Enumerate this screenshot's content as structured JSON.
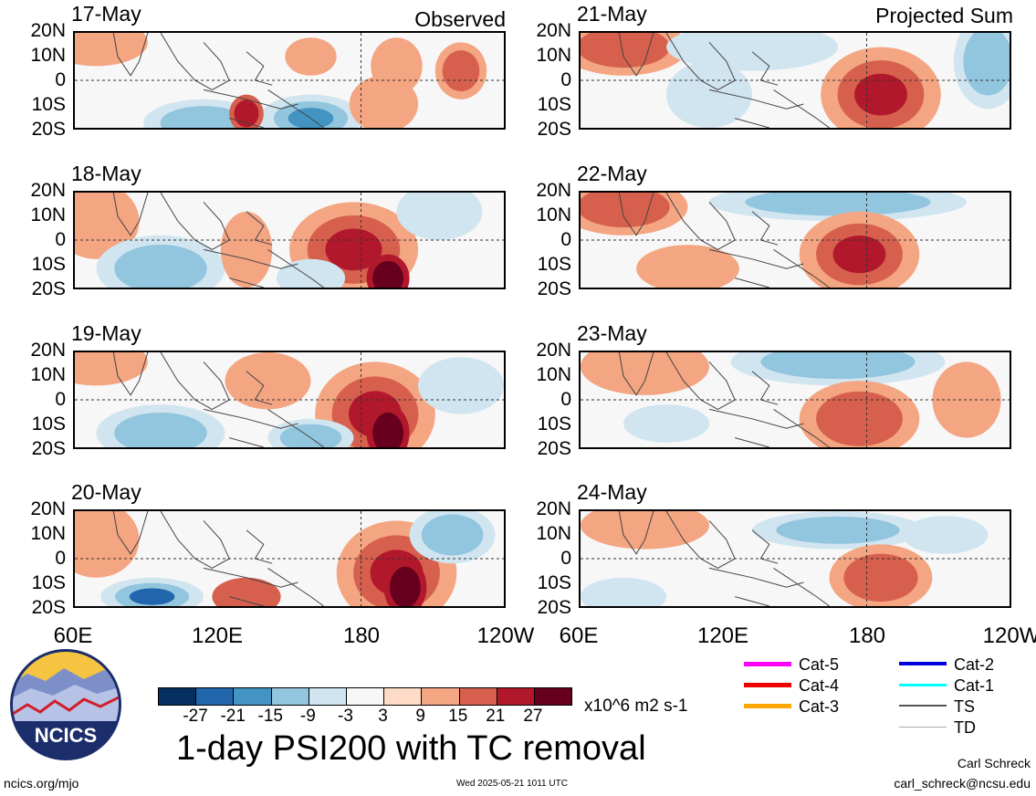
{
  "panels_left_tag": "Observed",
  "panels_right_tag": "Projected Sum",
  "panels": [
    {
      "date": "17-May",
      "column": "left",
      "row": 0
    },
    {
      "date": "18-May",
      "column": "left",
      "row": 1
    },
    {
      "date": "19-May",
      "column": "left",
      "row": 2
    },
    {
      "date": "20-May",
      "column": "left",
      "row": 3
    },
    {
      "date": "21-May",
      "column": "right",
      "row": 0
    },
    {
      "date": "22-May",
      "column": "right",
      "row": 1
    },
    {
      "date": "23-May",
      "column": "right",
      "row": 2
    },
    {
      "date": "24-May",
      "column": "right",
      "row": 3
    }
  ],
  "lat_labels": [
    "20N",
    "10N",
    "0",
    "10S",
    "20S"
  ],
  "lon_labels": [
    "60E",
    "120E",
    "180",
    "120W"
  ],
  "lon_labels_right": [
    "60E",
    "120E",
    "180",
    "120W"
  ],
  "colorbar": {
    "ticks": [
      "-27",
      "-21",
      "-15",
      "-9",
      "-3",
      "3",
      "9",
      "15",
      "21",
      "27"
    ],
    "colors": [
      "#053061",
      "#2166ac",
      "#4393c3",
      "#92c5de",
      "#d1e5f0",
      "#f7f7f7",
      "#fddbc7",
      "#f4a582",
      "#d6604d",
      "#b2182b",
      "#67001f"
    ],
    "units": "x10^6 m2 s-1"
  },
  "title": "1-day PSI200 with TC removal",
  "logo_text": "NCICS",
  "footer": {
    "left": "ncics.org/mjo",
    "center": "Wed 2025-05-21 1011 UTC",
    "author": "Carl Schreck",
    "email": "carl_schreck@ncsu.edu"
  },
  "tc_legend": [
    {
      "label": "Cat-5",
      "color": "#ff00ff",
      "width": 5
    },
    {
      "label": "Cat-4",
      "color": "#ee0000",
      "width": 5
    },
    {
      "label": "Cat-3",
      "color": "#ffa500",
      "width": 5
    },
    {
      "label": "Cat-2",
      "color": "#0000dd",
      "width": 4
    },
    {
      "label": "Cat-1",
      "color": "#00ffff",
      "width": 3
    },
    {
      "label": "TS",
      "color": "#555555",
      "width": 2
    },
    {
      "label": "TD",
      "color": "#aaaaaa",
      "width": 1
    }
  ],
  "chart_data": {
    "type": "heatmap",
    "title": "1-day PSI200 with TC removal",
    "variable": "PSI200",
    "units": "x10^6 m2 s-1",
    "x_axis": {
      "range": [
        "60E",
        "120W"
      ],
      "ticks": [
        "60E",
        "120E",
        "180",
        "120W"
      ]
    },
    "y_axis": {
      "range": [
        "20S",
        "20N"
      ],
      "ticks": [
        "20N",
        "10N",
        "0",
        "10S",
        "20S"
      ]
    },
    "color_levels": [
      -27,
      -21,
      -15,
      -9,
      -3,
      3,
      9,
      15,
      21,
      27
    ],
    "panels": [
      {
        "date": "17-May",
        "type": "Observed"
      },
      {
        "date": "18-May",
        "type": "Observed"
      },
      {
        "date": "19-May",
        "type": "Observed"
      },
      {
        "date": "20-May",
        "type": "Observed"
      },
      {
        "date": "21-May",
        "type": "Projected Sum"
      },
      {
        "date": "22-May",
        "type": "Projected Sum"
      },
      {
        "date": "23-May",
        "type": "Projected Sum"
      },
      {
        "date": "24-May",
        "type": "Projected Sum"
      }
    ],
    "grid": false,
    "legend": "bottom"
  }
}
